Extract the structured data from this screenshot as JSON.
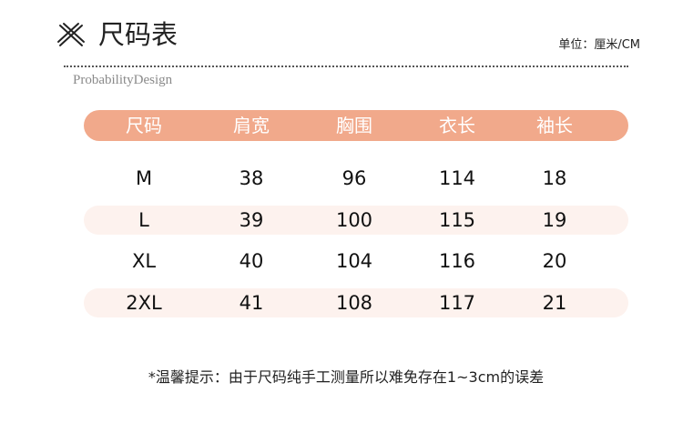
{
  "header": {
    "title": "尺码表",
    "unit": "单位：厘米/CM",
    "brand": "ProbabilityDesign"
  },
  "table": {
    "columns": [
      "尺码",
      "肩宽",
      "胸围",
      "衣长",
      "袖长"
    ],
    "rows": [
      [
        "M",
        "38",
        "96",
        "114",
        "18"
      ],
      [
        "L",
        "39",
        "100",
        "115",
        "19"
      ],
      [
        "XL",
        "40",
        "104",
        "116",
        "20"
      ],
      [
        "2XL",
        "41",
        "108",
        "117",
        "21"
      ]
    ]
  },
  "note": "*温馨提示：由于尺码纯手工测量所以难免存在1~3cm的误差"
}
